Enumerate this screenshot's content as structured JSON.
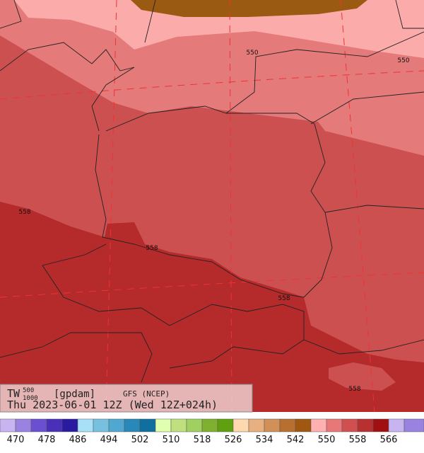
{
  "legend": {
    "variable": "TW",
    "sup": "500",
    "sub": "1000",
    "units": "[gpdam]",
    "model": "GFS (NCEP)",
    "time": "Thu 2023-06-01 12Z (Wed 12Z+024h)"
  },
  "contour_labels": [
    "550",
    "550",
    "558",
    "558",
    "558",
    "558"
  ],
  "colorbar": {
    "labels": [
      470,
      478,
      486,
      494,
      502,
      510,
      518,
      526,
      534,
      542,
      550,
      558,
      566
    ]
  }
}
